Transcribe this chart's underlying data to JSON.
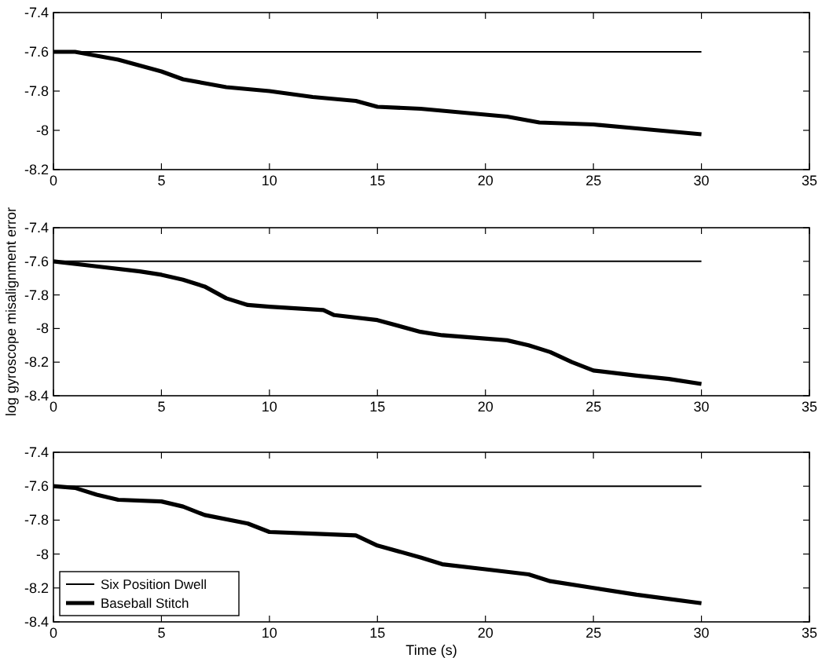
{
  "chart_data": [
    {
      "type": "line",
      "xlim": [
        0,
        35
      ],
      "xticks": [
        0,
        5,
        10,
        15,
        20,
        25,
        30,
        35
      ],
      "ylim": [
        -8.2,
        -7.4
      ],
      "yticks": [
        -8.2,
        -8,
        -7.8,
        -7.6,
        -7.4
      ],
      "series": [
        {
          "color": "#000000",
          "x": [
            0,
            30
          ],
          "values": [
            -7.6,
            -7.6
          ]
        },
        {
          "color": "#000000",
          "x": [
            0,
            1,
            2,
            3,
            4,
            5,
            6,
            7,
            8,
            10,
            12,
            14,
            15,
            17,
            19,
            21,
            22.5,
            25,
            27,
            30
          ],
          "values": [
            -7.6,
            -7.6,
            -7.62,
            -7.64,
            -7.67,
            -7.7,
            -7.74,
            -7.76,
            -7.78,
            -7.8,
            -7.83,
            -7.85,
            -7.88,
            -7.89,
            -7.91,
            -7.93,
            -7.96,
            -7.97,
            -7.99,
            -8.02
          ]
        }
      ]
    },
    {
      "type": "line",
      "xlim": [
        0,
        35
      ],
      "xticks": [
        0,
        5,
        10,
        15,
        20,
        25,
        30,
        35
      ],
      "ylim": [
        -8.4,
        -7.4
      ],
      "yticks": [
        -8.4,
        -8.2,
        -8,
        -7.8,
        -7.6,
        -7.4
      ],
      "ylabel": "log gyroscope misalignment error",
      "series": [
        {
          "color": "#000000",
          "x": [
            0,
            30
          ],
          "values": [
            -7.6,
            -7.6
          ]
        },
        {
          "color": "#000000",
          "x": [
            0,
            2,
            4,
            5,
            6,
            7,
            8,
            9,
            10,
            12.5,
            13,
            15,
            17,
            18,
            21,
            22,
            23,
            24,
            25,
            27,
            28.5,
            30
          ],
          "values": [
            -7.6,
            -7.63,
            -7.66,
            -7.68,
            -7.71,
            -7.75,
            -7.82,
            -7.86,
            -7.87,
            -7.89,
            -7.92,
            -7.95,
            -8.02,
            -8.04,
            -8.07,
            -8.1,
            -8.14,
            -8.2,
            -8.25,
            -8.28,
            -8.3,
            -8.33
          ]
        }
      ]
    },
    {
      "type": "line",
      "xlim": [
        0,
        35
      ],
      "xticks": [
        0,
        5,
        10,
        15,
        20,
        25,
        30,
        35
      ],
      "ylim": [
        -8.4,
        -7.4
      ],
      "yticks": [
        -8.4,
        -8.2,
        -8,
        -7.8,
        -7.6,
        -7.4
      ],
      "xlabel": "Time (s)",
      "legend": "bottom left",
      "series": [
        {
          "name": "Six Position Dwell",
          "color": "#000000",
          "x": [
            0,
            30
          ],
          "values": [
            -7.6,
            -7.6
          ]
        },
        {
          "name": "Baseball Stitch",
          "color": "#000000",
          "x": [
            0,
            1,
            2,
            3,
            5,
            6,
            7,
            9,
            10,
            12,
            14,
            15,
            17,
            18,
            20,
            22,
            23,
            25,
            27,
            30
          ],
          "values": [
            -7.6,
            -7.61,
            -7.65,
            -7.68,
            -7.69,
            -7.72,
            -7.77,
            -7.82,
            -7.87,
            -7.88,
            -7.89,
            -7.95,
            -8.02,
            -8.06,
            -8.09,
            -8.12,
            -8.16,
            -8.2,
            -8.24,
            -8.29
          ]
        }
      ]
    }
  ]
}
